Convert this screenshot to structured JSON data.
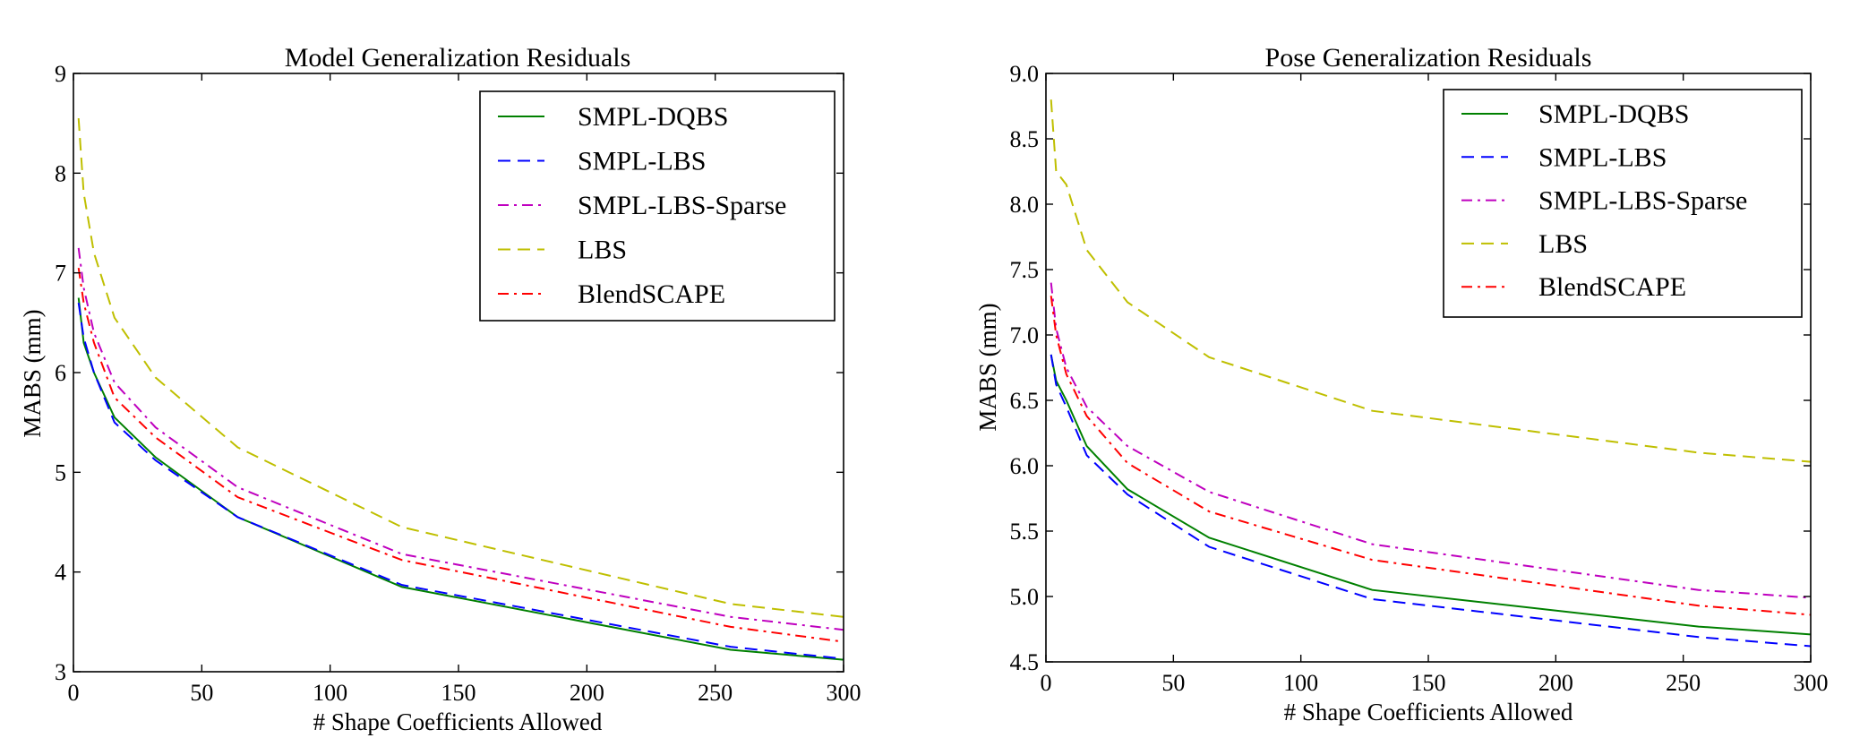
{
  "chart_data": [
    {
      "type": "line",
      "title": "Model Generalization Residuals",
      "xlabel": "# Shape Coefficients Allowed",
      "ylabel": "MABS (mm)",
      "xlim": [
        0,
        300
      ],
      "ylim": [
        3,
        9
      ],
      "xticks": [
        0,
        50,
        100,
        150,
        200,
        250,
        300
      ],
      "yticks": [
        3,
        4,
        5,
        6,
        7,
        8,
        9
      ],
      "ytick_labels": [
        "3",
        "4",
        "5",
        "6",
        "7",
        "8",
        "9"
      ],
      "legend_position": "top-right",
      "series": [
        {
          "name": "SMPL-DQBS",
          "color": "#008000",
          "dash": "solid",
          "x": [
            2,
            4,
            8,
            16,
            32,
            64,
            128,
            256,
            300
          ],
          "y": [
            6.75,
            6.3,
            6.0,
            5.55,
            5.15,
            4.55,
            3.85,
            3.22,
            3.12
          ]
        },
        {
          "name": "SMPL-LBS",
          "color": "#0000ff",
          "dash": "dashed",
          "x": [
            2,
            4,
            8,
            16,
            32,
            64,
            128,
            256,
            300
          ],
          "y": [
            6.7,
            6.35,
            6.0,
            5.5,
            5.12,
            4.55,
            3.87,
            3.25,
            3.13
          ]
        },
        {
          "name": "SMPL-LBS-Sparse",
          "color": "#bf00bf",
          "dash": "dashdot",
          "x": [
            2,
            4,
            8,
            16,
            32,
            64,
            128,
            256,
            300
          ],
          "y": [
            7.25,
            6.85,
            6.4,
            5.9,
            5.45,
            4.85,
            4.18,
            3.55,
            3.42
          ]
        },
        {
          "name": "LBS",
          "color": "#bfbf00",
          "dash": "dashed",
          "x": [
            2,
            4,
            8,
            16,
            32,
            64,
            128,
            256,
            300
          ],
          "y": [
            8.55,
            7.8,
            7.2,
            6.55,
            5.95,
            5.25,
            4.45,
            3.68,
            3.55
          ]
        },
        {
          "name": "BlendSCAPE",
          "color": "#ff0000",
          "dash": "dashdot",
          "x": [
            2,
            4,
            8,
            16,
            32,
            64,
            128,
            256,
            300
          ],
          "y": [
            7.05,
            6.7,
            6.3,
            5.75,
            5.35,
            4.75,
            4.12,
            3.45,
            3.3
          ]
        }
      ]
    },
    {
      "type": "line",
      "title": "Pose Generalization Residuals",
      "xlabel": "# Shape Coefficients Allowed",
      "ylabel": "MABS (mm)",
      "xlim": [
        0,
        300
      ],
      "ylim": [
        4.5,
        9.0
      ],
      "xticks": [
        0,
        50,
        100,
        150,
        200,
        250,
        300
      ],
      "yticks": [
        4.5,
        5.0,
        5.5,
        6.0,
        6.5,
        7.0,
        7.5,
        8.0,
        8.5,
        9.0
      ],
      "ytick_labels": [
        "4.5",
        "5.0",
        "5.5",
        "6.0",
        "6.5",
        "7.0",
        "7.5",
        "8.0",
        "8.5",
        "9.0"
      ],
      "legend_position": "top-right",
      "series": [
        {
          "name": "SMPL-DQBS",
          "color": "#008000",
          "dash": "solid",
          "x": [
            2,
            4,
            8,
            16,
            32,
            64,
            128,
            256,
            300
          ],
          "y": [
            6.85,
            6.65,
            6.5,
            6.15,
            5.82,
            5.45,
            5.05,
            4.77,
            4.71
          ]
        },
        {
          "name": "SMPL-LBS",
          "color": "#0000ff",
          "dash": "dashed",
          "x": [
            2,
            4,
            8,
            16,
            32,
            64,
            128,
            256,
            300
          ],
          "y": [
            6.85,
            6.62,
            6.45,
            6.08,
            5.78,
            5.38,
            4.98,
            4.69,
            4.62
          ]
        },
        {
          "name": "SMPL-LBS-Sparse",
          "color": "#bf00bf",
          "dash": "dashdot",
          "x": [
            2,
            4,
            8,
            16,
            32,
            64,
            128,
            256,
            300
          ],
          "y": [
            7.4,
            7.05,
            6.75,
            6.45,
            6.15,
            5.8,
            5.4,
            5.05,
            4.99
          ]
        },
        {
          "name": "LBS",
          "color": "#bfbf00",
          "dash": "dashed",
          "x": [
            2,
            4,
            8,
            16,
            32,
            64,
            128,
            256,
            300
          ],
          "y": [
            8.8,
            8.25,
            8.15,
            7.65,
            7.25,
            6.83,
            6.42,
            6.1,
            6.03
          ]
        },
        {
          "name": "BlendSCAPE",
          "color": "#ff0000",
          "dash": "dashdot",
          "x": [
            2,
            4,
            8,
            16,
            32,
            64,
            128,
            256,
            300
          ],
          "y": [
            7.3,
            7.0,
            6.7,
            6.38,
            6.02,
            5.65,
            5.28,
            4.93,
            4.86
          ]
        }
      ]
    }
  ]
}
